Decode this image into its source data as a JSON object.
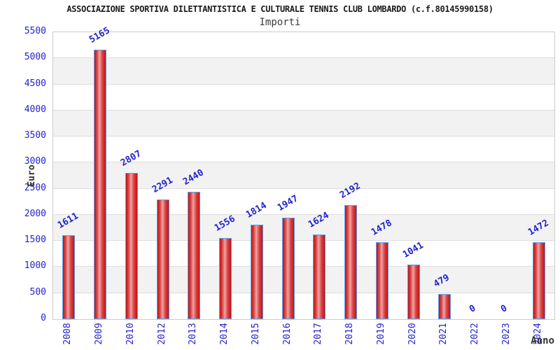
{
  "chart_data": {
    "type": "bar",
    "title": "ASSOCIAZIONE SPORTIVA DILETTANTISTICA E CULTURALE TENNIS CLUB LOMBARDO (c.f.80145990158)",
    "subtitle": "Importi",
    "xlabel": "Anno",
    "ylabel": "Euro",
    "categories": [
      "2008",
      "2009",
      "2010",
      "2012",
      "2013",
      "2014",
      "2015",
      "2016",
      "2017",
      "2018",
      "2019",
      "2020",
      "2021",
      "2022",
      "2023",
      "2024"
    ],
    "values": [
      1611,
      5165,
      2807,
      2291,
      2440,
      1556,
      1814,
      1947,
      1624,
      2192,
      1478,
      1041,
      479,
      0,
      0,
      1472
    ],
    "ylim": [
      0,
      5500
    ],
    "ytick_step": 500,
    "ytick_labels": [
      "0",
      "500",
      "1000",
      "1500",
      "2000",
      "2500",
      "3000",
      "3500",
      "4000",
      "4500",
      "5000",
      "5500"
    ],
    "grid": true,
    "legend": false,
    "band_fill": "alternating horizontal bands per 500 units"
  },
  "colors": {
    "label_blue": "#2323cd",
    "bar_red_dark": "#c31212",
    "bar_red_light": "#eda3a3",
    "bar_border_blue": "#55a0f0",
    "band_gray": "#f2f2f2",
    "grid_line": "#dddddd",
    "plot_border": "#cccccc",
    "axis_title_dark": "#333333",
    "title_dark": "#1a1a1a"
  }
}
